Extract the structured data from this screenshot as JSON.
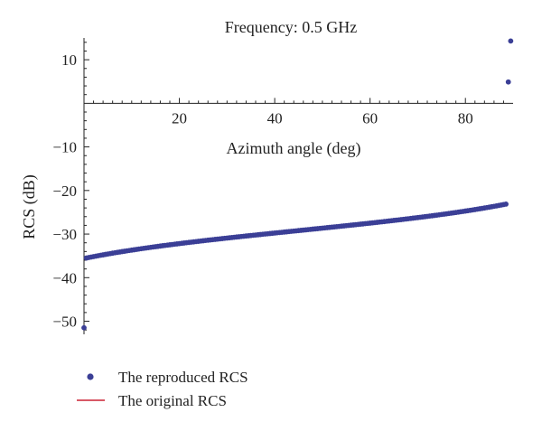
{
  "chart_data": {
    "type": "scatter",
    "title": "Frequency: 0.5 GHz",
    "xlabel": "Azimuth angle (deg)",
    "ylabel": "RCS (dB)",
    "xlim": [
      0,
      90
    ],
    "ylim": [
      -53,
      15
    ],
    "xticks": [
      20,
      40,
      60,
      80
    ],
    "yticks": [
      10,
      -10,
      -20,
      -30,
      -40,
      -50
    ],
    "xtick_labels": [
      "20",
      "40",
      "60",
      "80"
    ],
    "ytick_labels": [
      "10",
      "−10",
      "−20",
      "−30",
      "−40",
      "−50"
    ],
    "grid": false,
    "legend_position": "bottom-left",
    "series": [
      {
        "name": "The reproduced RCS",
        "kind": "points",
        "color": "#3b3f96",
        "curve": "tan",
        "x_range": [
          0,
          89.5
        ],
        "x_step": 0.5,
        "center": -29.2,
        "scale": 6.4,
        "extra_points": [
          {
            "x": 0,
            "y": -51.5
          },
          {
            "x": 89,
            "y": 4.9
          },
          {
            "x": 89.5,
            "y": 14.3
          }
        ]
      },
      {
        "name": "The original RCS",
        "kind": "line",
        "color": "#cc2233",
        "curve": "tan",
        "x_range": [
          0.5,
          88.4
        ],
        "center": -29.2,
        "scale": 6.4
      }
    ]
  }
}
